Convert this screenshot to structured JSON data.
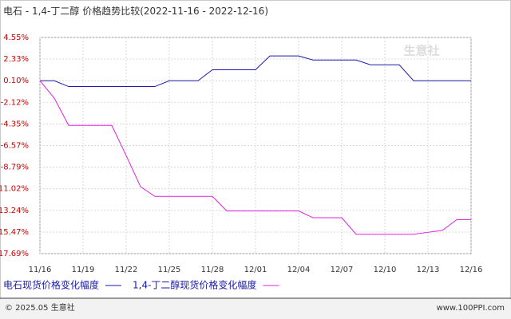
{
  "chart_data": {
    "type": "line",
    "title": "电石 - 1,4-丁二醇 价格趋势比较",
    "subtitle": "(2022-11-16 - 2022-12-16)",
    "categories": [
      "11/16",
      null,
      null,
      "11/19",
      null,
      null,
      "11/22",
      null,
      null,
      "11/25",
      null,
      null,
      "11/28",
      null,
      null,
      "12/01",
      null,
      null,
      "12/04",
      null,
      null,
      "12/07",
      null,
      null,
      "12/10",
      null,
      null,
      "12/13",
      null,
      null,
      "12/16"
    ],
    "series": [
      {
        "name": "电石现货价格变化幅度",
        "color": "#1a1aa8",
        "values": [
          0.1,
          0.1,
          -0.5,
          -0.5,
          -0.5,
          -0.5,
          -0.5,
          -0.5,
          -0.5,
          0.1,
          0.1,
          0.1,
          1.23,
          1.23,
          1.23,
          1.23,
          2.65,
          2.65,
          2.65,
          2.23,
          2.23,
          2.23,
          2.23,
          1.74,
          1.74,
          1.74,
          0.1,
          0.1,
          0.1,
          0.1,
          0.1
        ]
      },
      {
        "name": "1,4-丁二醇现货价格变化幅度",
        "color": "#e020e0",
        "values": [
          0.1,
          -1.7,
          -4.5,
          -4.5,
          -4.5,
          -4.5,
          -7.6,
          -10.8,
          -11.8,
          -11.8,
          -11.8,
          -11.8,
          -11.8,
          -13.3,
          -13.3,
          -13.3,
          -13.3,
          -13.3,
          -13.3,
          -14.0,
          -14.0,
          -14.0,
          -15.7,
          -15.7,
          -15.7,
          -15.7,
          -15.7,
          -15.5,
          -15.3,
          -14.2,
          -14.2
        ]
      }
    ],
    "ylim": [
      -17.69,
      4.55
    ],
    "yticks": [
      {
        "value": 4.55,
        "label": "4.55%"
      },
      {
        "value": 2.33,
        "label": "2.33%"
      },
      {
        "value": 0.1,
        "label": "0.10%"
      },
      {
        "value": -2.12,
        "label": "-2.12%"
      },
      {
        "value": -4.35,
        "label": "-4.35%"
      },
      {
        "value": -6.57,
        "label": "-6.57%"
      },
      {
        "value": -8.79,
        "label": "-8.79%"
      },
      {
        "value": -11.02,
        "label": "-11.02%"
      },
      {
        "value": -13.24,
        "label": "-13.24%"
      },
      {
        "value": -15.47,
        "label": "-15.47%"
      },
      {
        "value": -17.69,
        "label": "-17.69%"
      }
    ],
    "grid": true,
    "watermark": "生意社",
    "footer_left": "© 2025.05 生意社",
    "footer_right": "www.100PPI.com"
  }
}
